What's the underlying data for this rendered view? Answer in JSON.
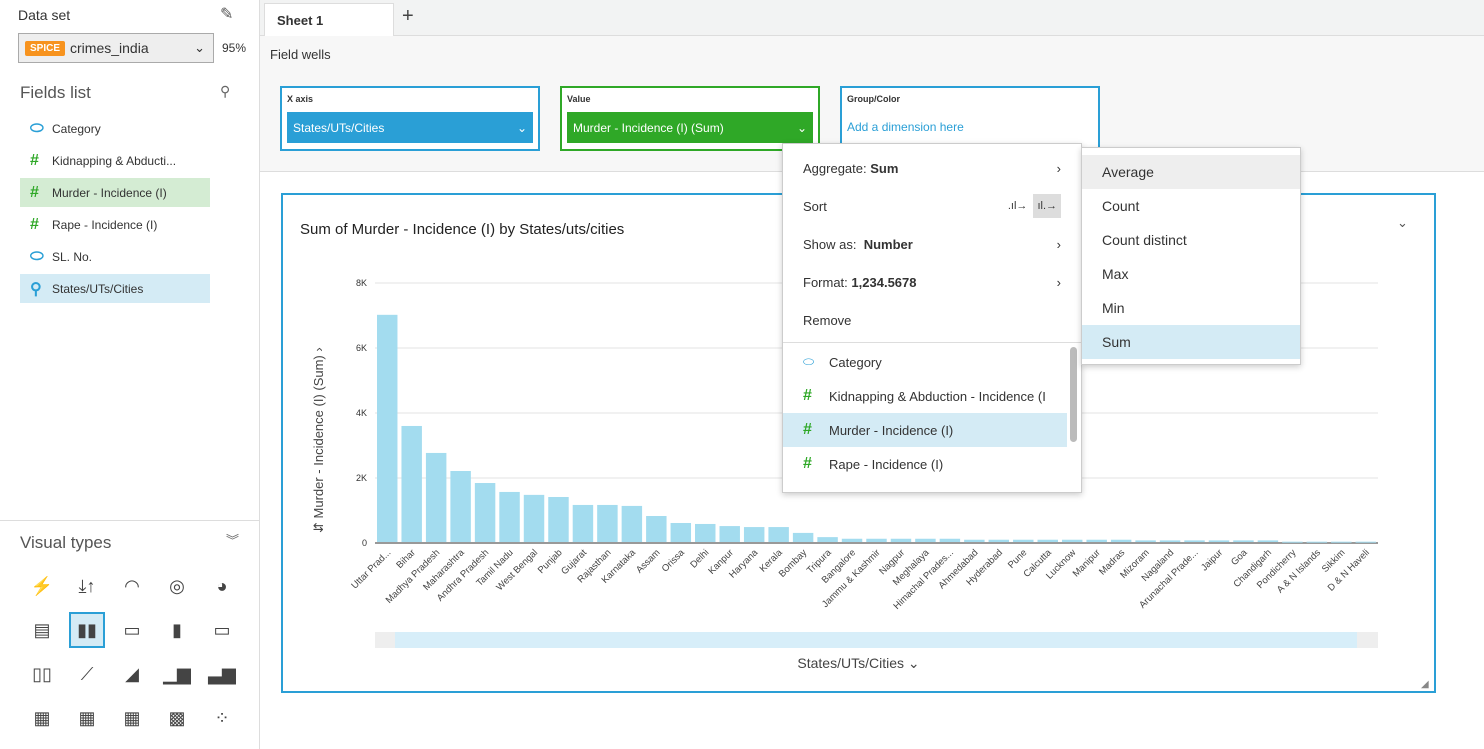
{
  "dataset": {
    "label": "Data set",
    "badge": "SPICE",
    "name": "crimes_india",
    "percent": "95%"
  },
  "fields": {
    "title": "Fields list",
    "items": [
      {
        "label": "Category",
        "type": "dimension"
      },
      {
        "label": "Kidnapping & Abducti...",
        "type": "measure"
      },
      {
        "label": "Murder - Incidence (I)",
        "type": "measure"
      },
      {
        "label": "Rape - Incidence (I)",
        "type": "measure"
      },
      {
        "label": "SL. No.",
        "type": "dimension"
      },
      {
        "label": "States/UTs/Cities",
        "type": "geo"
      }
    ]
  },
  "visual_types": {
    "title": "Visual types"
  },
  "tabs": [
    {
      "label": "Sheet 1"
    }
  ],
  "add_tab": "+",
  "wells": {
    "title": "Field wells",
    "x_label": "X axis",
    "x_value": "States/UTs/Cities",
    "v_label": "Value",
    "v_value": "Murder - Incidence (I) (Sum)",
    "g_label": "Group/Color",
    "g_placeholder": "Add a dimension here"
  },
  "menu": {
    "aggregate_label": "Aggregate:",
    "aggregate_value": "Sum",
    "sort": "Sort",
    "show_as_label": "Show as:",
    "show_as_value": "Number",
    "format_label": "Format:",
    "format_value": "1,234.5678",
    "remove": "Remove",
    "fields": [
      "Category",
      "Kidnapping & Abduction - Incidence (I",
      "Murder - Incidence (I)",
      "Rape - Incidence (I)"
    ]
  },
  "submenu": [
    "Average",
    "Count",
    "Count distinct",
    "Max",
    "Min",
    "Sum"
  ],
  "chart_data": {
    "type": "bar",
    "title": "Sum of Murder - Incidence (I) by States/uts/cities",
    "xlabel": "States/UTs/Cities",
    "ylabel": "Murder - Incidence (I) (Sum)",
    "ylim": [
      0,
      8000
    ],
    "yticks": [
      "0",
      "2K",
      "4K",
      "6K",
      "8K"
    ],
    "grid": true,
    "categories": [
      "Uttar Prad...",
      "Bihar",
      "Madhya Pradesh",
      "Maharashtra",
      "Andhra Pradesh",
      "Tamil Nadu",
      "West Bengal",
      "Punjab",
      "Gujarat",
      "Rajasthan",
      "Karnataka",
      "Assam",
      "Orissa",
      "Delhi",
      "Kanpur",
      "Haryana",
      "Kerala",
      "Bombay",
      "Tripura",
      "Bangalore",
      "Jammu & Kashmir",
      "Nagpur",
      "Meghalaya",
      "Himachal Prades...",
      "Ahmedabad",
      "Hyderabad",
      "Pune",
      "Calcutta",
      "Lucknow",
      "Manipur",
      "Madras",
      "Mizoram",
      "Nagaland",
      "Arunachal Prade...",
      "Jaipur",
      "Goa",
      "Chandigarh",
      "Pondicherry",
      "A & N Islands",
      "Sikkim",
      "D & N Haveli"
    ],
    "values": [
      6990,
      3570,
      2740,
      2185,
      1815,
      1540,
      1450,
      1385,
      1140,
      1140,
      1110,
      800,
      585,
      555,
      490,
      460,
      460,
      280,
      150,
      100,
      100,
      100,
      100,
      100,
      70,
      70,
      70,
      70,
      70,
      70,
      70,
      50,
      50,
      50,
      50,
      50,
      50,
      10,
      10,
      10,
      10
    ]
  }
}
